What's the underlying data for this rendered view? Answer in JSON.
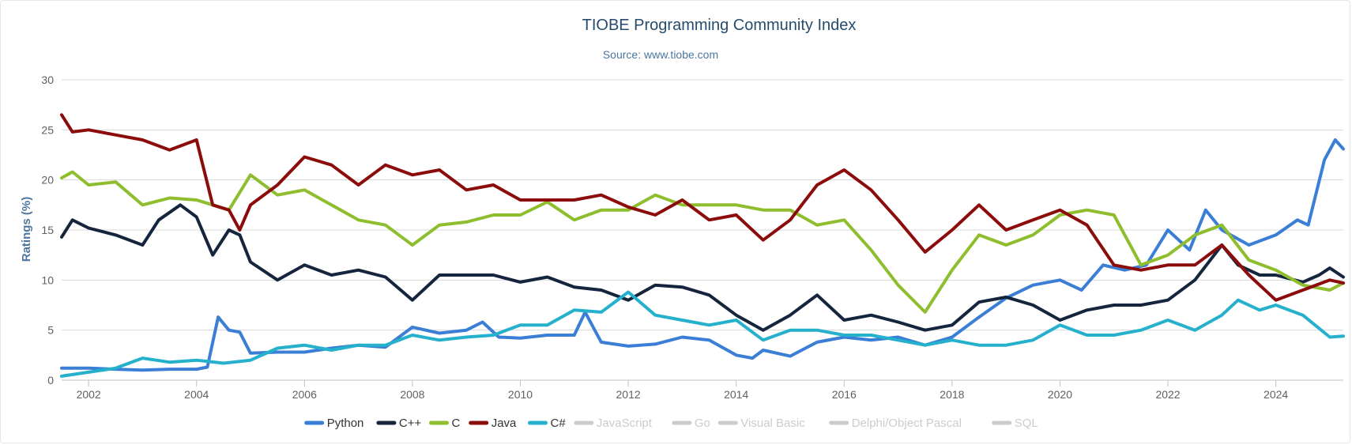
{
  "chart_data": {
    "type": "line",
    "title": "TIOBE Programming Community Index",
    "subtitle": "Source: www.tiobe.com",
    "ylabel": "Ratings (%)",
    "xlabel": "",
    "xlim": [
      2001.5,
      2025.25
    ],
    "ylim": [
      0,
      30
    ],
    "yticks": [
      0,
      5,
      10,
      15,
      20,
      25,
      30
    ],
    "xticks": [
      2002,
      2004,
      2006,
      2008,
      2010,
      2012,
      2014,
      2016,
      2018,
      2020,
      2022,
      2024
    ],
    "ytick_labels": [
      "0",
      "5",
      "10",
      "15",
      "20",
      "25",
      "30"
    ],
    "xtick_labels": [
      "2002",
      "2004",
      "2006",
      "2008",
      "2010",
      "2012",
      "2014",
      "2016",
      "2018",
      "2020",
      "2022",
      "2024"
    ],
    "grid": true,
    "legend_position": "bottom-center",
    "series": [
      {
        "name": "Python",
        "color": "#3a7fd5",
        "visible": true,
        "points": [
          [
            2001.5,
            1.2
          ],
          [
            2002,
            1.2
          ],
          [
            2002.5,
            1.1
          ],
          [
            2003,
            1.0
          ],
          [
            2003.5,
            1.1
          ],
          [
            2004,
            1.1
          ],
          [
            2004.2,
            1.3
          ],
          [
            2004.4,
            6.3
          ],
          [
            2004.6,
            5.0
          ],
          [
            2004.8,
            4.8
          ],
          [
            2005,
            2.7
          ],
          [
            2005.5,
            2.8
          ],
          [
            2006,
            2.8
          ],
          [
            2006.5,
            3.2
          ],
          [
            2007,
            3.5
          ],
          [
            2007.5,
            3.3
          ],
          [
            2008,
            5.3
          ],
          [
            2008.5,
            4.7
          ],
          [
            2009,
            5.0
          ],
          [
            2009.3,
            5.8
          ],
          [
            2009.6,
            4.3
          ],
          [
            2010,
            4.2
          ],
          [
            2010.5,
            4.5
          ],
          [
            2011,
            4.5
          ],
          [
            2011.2,
            6.8
          ],
          [
            2011.5,
            3.8
          ],
          [
            2012,
            3.4
          ],
          [
            2012.5,
            3.6
          ],
          [
            2013,
            4.3
          ],
          [
            2013.5,
            4.0
          ],
          [
            2014,
            2.5
          ],
          [
            2014.3,
            2.2
          ],
          [
            2014.5,
            3.0
          ],
          [
            2015,
            2.4
          ],
          [
            2015.5,
            3.8
          ],
          [
            2016,
            4.3
          ],
          [
            2016.5,
            4.0
          ],
          [
            2017,
            4.3
          ],
          [
            2017.5,
            3.5
          ],
          [
            2018,
            4.3
          ],
          [
            2018.5,
            6.3
          ],
          [
            2019,
            8.2
          ],
          [
            2019.5,
            9.5
          ],
          [
            2020,
            10.0
          ],
          [
            2020.4,
            9.0
          ],
          [
            2020.8,
            11.5
          ],
          [
            2021.2,
            11.0
          ],
          [
            2021.6,
            11.5
          ],
          [
            2022,
            15.0
          ],
          [
            2022.4,
            13.0
          ],
          [
            2022.7,
            17.0
          ],
          [
            2023,
            15.0
          ],
          [
            2023.5,
            13.5
          ],
          [
            2024,
            14.5
          ],
          [
            2024.4,
            16.0
          ],
          [
            2024.6,
            15.5
          ],
          [
            2024.9,
            22.0
          ],
          [
            2025.1,
            24.0
          ],
          [
            2025.25,
            23.1
          ]
        ]
      },
      {
        "name": "C++",
        "color": "#15253d",
        "visible": true,
        "points": [
          [
            2001.5,
            14.3
          ],
          [
            2001.7,
            16.0
          ],
          [
            2002,
            15.2
          ],
          [
            2002.5,
            14.5
          ],
          [
            2003,
            13.5
          ],
          [
            2003.3,
            16.0
          ],
          [
            2003.7,
            17.5
          ],
          [
            2004,
            16.3
          ],
          [
            2004.3,
            12.5
          ],
          [
            2004.6,
            15.0
          ],
          [
            2004.8,
            14.5
          ],
          [
            2005,
            11.8
          ],
          [
            2005.5,
            10.0
          ],
          [
            2006,
            11.5
          ],
          [
            2006.5,
            10.5
          ],
          [
            2007,
            11.0
          ],
          [
            2007.5,
            10.3
          ],
          [
            2008,
            8.0
          ],
          [
            2008.5,
            10.5
          ],
          [
            2009,
            10.5
          ],
          [
            2009.5,
            10.5
          ],
          [
            2010,
            9.8
          ],
          [
            2010.5,
            10.3
          ],
          [
            2011,
            9.3
          ],
          [
            2011.5,
            9.0
          ],
          [
            2012,
            8.0
          ],
          [
            2012.5,
            9.5
          ],
          [
            2013,
            9.3
          ],
          [
            2013.5,
            8.5
          ],
          [
            2014,
            6.5
          ],
          [
            2014.5,
            5.0
          ],
          [
            2015,
            6.5
          ],
          [
            2015.5,
            8.5
          ],
          [
            2016,
            6.0
          ],
          [
            2016.5,
            6.5
          ],
          [
            2017,
            5.8
          ],
          [
            2017.5,
            5.0
          ],
          [
            2018,
            5.5
          ],
          [
            2018.5,
            7.8
          ],
          [
            2019,
            8.3
          ],
          [
            2019.5,
            7.5
          ],
          [
            2020,
            6.0
          ],
          [
            2020.5,
            7.0
          ],
          [
            2021,
            7.5
          ],
          [
            2021.5,
            7.5
          ],
          [
            2022,
            8.0
          ],
          [
            2022.5,
            10.0
          ],
          [
            2023,
            13.5
          ],
          [
            2023.3,
            11.5
          ],
          [
            2023.7,
            10.5
          ],
          [
            2024,
            10.5
          ],
          [
            2024.5,
            9.8
          ],
          [
            2024.8,
            10.5
          ],
          [
            2025,
            11.2
          ],
          [
            2025.25,
            10.3
          ]
        ]
      },
      {
        "name": "C",
        "color": "#8ebe2d",
        "visible": true,
        "points": [
          [
            2001.5,
            20.2
          ],
          [
            2001.7,
            20.8
          ],
          [
            2002,
            19.5
          ],
          [
            2002.5,
            19.8
          ],
          [
            2003,
            17.5
          ],
          [
            2003.5,
            18.2
          ],
          [
            2004,
            18.0
          ],
          [
            2004.3,
            17.5
          ],
          [
            2004.6,
            17.0
          ],
          [
            2005,
            20.5
          ],
          [
            2005.5,
            18.5
          ],
          [
            2006,
            19.0
          ],
          [
            2006.5,
            17.5
          ],
          [
            2007,
            16.0
          ],
          [
            2007.5,
            15.5
          ],
          [
            2008,
            13.5
          ],
          [
            2008.5,
            15.5
          ],
          [
            2009,
            15.8
          ],
          [
            2009.5,
            16.5
          ],
          [
            2010,
            16.5
          ],
          [
            2010.5,
            17.8
          ],
          [
            2011,
            16.0
          ],
          [
            2011.5,
            17.0
          ],
          [
            2012,
            17.0
          ],
          [
            2012.5,
            18.5
          ],
          [
            2013,
            17.5
          ],
          [
            2013.5,
            17.5
          ],
          [
            2014,
            17.5
          ],
          [
            2014.5,
            17.0
          ],
          [
            2015,
            17.0
          ],
          [
            2015.5,
            15.5
          ],
          [
            2016,
            16.0
          ],
          [
            2016.5,
            13.0
          ],
          [
            2017,
            9.5
          ],
          [
            2017.5,
            6.8
          ],
          [
            2018,
            11.0
          ],
          [
            2018.5,
            14.5
          ],
          [
            2019,
            13.5
          ],
          [
            2019.5,
            14.5
          ],
          [
            2020,
            16.5
          ],
          [
            2020.5,
            17.0
          ],
          [
            2021,
            16.5
          ],
          [
            2021.5,
            11.5
          ],
          [
            2022,
            12.5
          ],
          [
            2022.5,
            14.5
          ],
          [
            2023,
            15.5
          ],
          [
            2023.5,
            12.0
          ],
          [
            2024,
            11.0
          ],
          [
            2024.5,
            9.5
          ],
          [
            2025,
            9.0
          ],
          [
            2025.25,
            9.7
          ]
        ]
      },
      {
        "name": "Java",
        "color": "#8c0c0c",
        "visible": true,
        "points": [
          [
            2001.5,
            26.5
          ],
          [
            2001.7,
            24.8
          ],
          [
            2002,
            25.0
          ],
          [
            2002.5,
            24.5
          ],
          [
            2003,
            24.0
          ],
          [
            2003.5,
            23.0
          ],
          [
            2004,
            24.0
          ],
          [
            2004.3,
            17.5
          ],
          [
            2004.6,
            17.0
          ],
          [
            2004.8,
            15.0
          ],
          [
            2005,
            17.5
          ],
          [
            2005.5,
            19.5
          ],
          [
            2006,
            22.3
          ],
          [
            2006.5,
            21.5
          ],
          [
            2007,
            19.5
          ],
          [
            2007.5,
            21.5
          ],
          [
            2008,
            20.5
          ],
          [
            2008.5,
            21.0
          ],
          [
            2009,
            19.0
          ],
          [
            2009.5,
            19.5
          ],
          [
            2010,
            18.0
          ],
          [
            2010.5,
            18.0
          ],
          [
            2011,
            18.0
          ],
          [
            2011.5,
            18.5
          ],
          [
            2012,
            17.3
          ],
          [
            2012.5,
            16.5
          ],
          [
            2013,
            18.0
          ],
          [
            2013.5,
            16.0
          ],
          [
            2014,
            16.5
          ],
          [
            2014.5,
            14.0
          ],
          [
            2015,
            16.0
          ],
          [
            2015.5,
            19.5
          ],
          [
            2016,
            21.0
          ],
          [
            2016.5,
            19.0
          ],
          [
            2017,
            16.0
          ],
          [
            2017.5,
            12.8
          ],
          [
            2018,
            15.0
          ],
          [
            2018.5,
            17.5
          ],
          [
            2019,
            15.0
          ],
          [
            2019.5,
            16.0
          ],
          [
            2020,
            17.0
          ],
          [
            2020.5,
            15.5
          ],
          [
            2021,
            11.5
          ],
          [
            2021.5,
            11.0
          ],
          [
            2022,
            11.5
          ],
          [
            2022.5,
            11.5
          ],
          [
            2023,
            13.5
          ],
          [
            2023.5,
            10.5
          ],
          [
            2024,
            8.0
          ],
          [
            2024.5,
            9.0
          ],
          [
            2025,
            10.0
          ],
          [
            2025.25,
            9.7
          ]
        ]
      },
      {
        "name": "C#",
        "color": "#25b0cc",
        "visible": true,
        "points": [
          [
            2001.5,
            0.4
          ],
          [
            2002,
            0.8
          ],
          [
            2002.5,
            1.2
          ],
          [
            2003,
            2.2
          ],
          [
            2003.5,
            1.8
          ],
          [
            2004,
            2.0
          ],
          [
            2004.5,
            1.7
          ],
          [
            2005,
            2.0
          ],
          [
            2005.5,
            3.2
          ],
          [
            2006,
            3.5
          ],
          [
            2006.5,
            3.0
          ],
          [
            2007,
            3.5
          ],
          [
            2007.5,
            3.5
          ],
          [
            2008,
            4.5
          ],
          [
            2008.5,
            4.0
          ],
          [
            2009,
            4.3
          ],
          [
            2009.5,
            4.5
          ],
          [
            2010,
            5.5
          ],
          [
            2010.5,
            5.5
          ],
          [
            2011,
            7.0
          ],
          [
            2011.5,
            6.8
          ],
          [
            2012,
            8.8
          ],
          [
            2012.5,
            6.5
          ],
          [
            2013,
            6.0
          ],
          [
            2013.5,
            5.5
          ],
          [
            2014,
            6.0
          ],
          [
            2014.5,
            4.0
          ],
          [
            2015,
            5.0
          ],
          [
            2015.5,
            5.0
          ],
          [
            2016,
            4.5
          ],
          [
            2016.5,
            4.5
          ],
          [
            2017,
            4.0
          ],
          [
            2017.5,
            3.5
          ],
          [
            2018,
            4.0
          ],
          [
            2018.5,
            3.5
          ],
          [
            2019,
            3.5
          ],
          [
            2019.5,
            4.0
          ],
          [
            2020,
            5.5
          ],
          [
            2020.5,
            4.5
          ],
          [
            2021,
            4.5
          ],
          [
            2021.5,
            5.0
          ],
          [
            2022,
            6.0
          ],
          [
            2022.5,
            5.0
          ],
          [
            2023,
            6.5
          ],
          [
            2023.3,
            8.0
          ],
          [
            2023.7,
            7.0
          ],
          [
            2024,
            7.5
          ],
          [
            2024.5,
            6.5
          ],
          [
            2025,
            4.3
          ],
          [
            2025.25,
            4.4
          ]
        ]
      }
    ],
    "legend": [
      {
        "name": "Python",
        "color": "#3a7fd5",
        "visible": true
      },
      {
        "name": "C++",
        "color": "#15253d",
        "visible": true
      },
      {
        "name": "C",
        "color": "#8ebe2d",
        "visible": true
      },
      {
        "name": "Java",
        "color": "#8c0c0c",
        "visible": true
      },
      {
        "name": "C#",
        "color": "#25b0cc",
        "visible": true
      },
      {
        "name": "JavaScript",
        "color": "#cccccc",
        "visible": false
      },
      {
        "name": "Go",
        "color": "#cccccc",
        "visible": false
      },
      {
        "name": "Visual Basic",
        "color": "#cccccc",
        "visible": false
      },
      {
        "name": "Delphi/Object Pascal",
        "color": "#cccccc",
        "visible": false
      },
      {
        "name": "SQL",
        "color": "#cccccc",
        "visible": false
      }
    ]
  }
}
